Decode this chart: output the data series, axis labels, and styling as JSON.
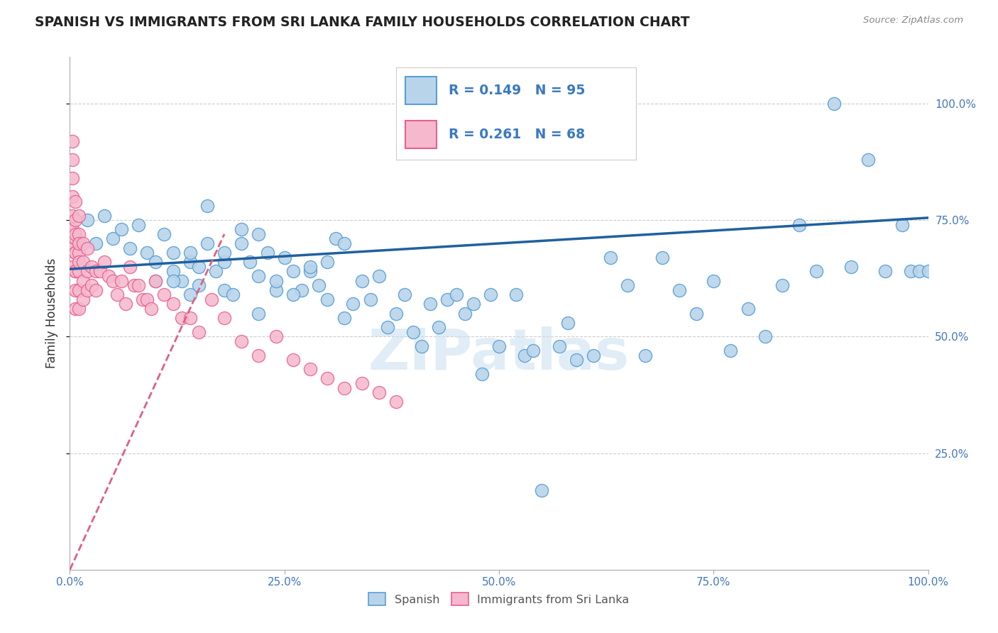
{
  "title": "SPANISH VS IMMIGRANTS FROM SRI LANKA FAMILY HOUSEHOLDS CORRELATION CHART",
  "source_text": "Source: ZipAtlas.com",
  "ylabel": "Family Households",
  "blue_R": 0.149,
  "blue_N": 95,
  "pink_R": 0.261,
  "pink_N": 68,
  "blue_color": "#b8d4ea",
  "pink_color": "#f5b8cc",
  "blue_edge_color": "#5a9fd4",
  "pink_edge_color": "#e86090",
  "blue_line_color": "#2060a0",
  "pink_line_color": "#e06080",
  "watermark": "ZIPatlas",
  "blue_scatter_x": [
    0.02,
    0.03,
    0.04,
    0.05,
    0.06,
    0.07,
    0.08,
    0.09,
    0.1,
    0.11,
    0.12,
    0.12,
    0.13,
    0.14,
    0.14,
    0.15,
    0.15,
    0.16,
    0.17,
    0.18,
    0.18,
    0.19,
    0.2,
    0.21,
    0.22,
    0.22,
    0.23,
    0.24,
    0.25,
    0.26,
    0.27,
    0.28,
    0.29,
    0.3,
    0.31,
    0.32,
    0.33,
    0.34,
    0.35,
    0.36,
    0.37,
    0.38,
    0.39,
    0.4,
    0.41,
    0.42,
    0.43,
    0.44,
    0.45,
    0.46,
    0.47,
    0.48,
    0.49,
    0.5,
    0.52,
    0.53,
    0.54,
    0.55,
    0.57,
    0.58,
    0.59,
    0.61,
    0.63,
    0.65,
    0.67,
    0.69,
    0.71,
    0.73,
    0.75,
    0.77,
    0.79,
    0.81,
    0.83,
    0.85,
    0.87,
    0.89,
    0.91,
    0.93,
    0.95,
    0.97,
    0.98,
    0.99,
    1.0,
    0.1,
    0.12,
    0.14,
    0.16,
    0.18,
    0.2,
    0.22,
    0.24,
    0.26,
    0.28,
    0.3,
    0.32
  ],
  "blue_scatter_y": [
    0.75,
    0.7,
    0.76,
    0.71,
    0.73,
    0.69,
    0.74,
    0.68,
    0.66,
    0.72,
    0.64,
    0.68,
    0.62,
    0.66,
    0.59,
    0.65,
    0.61,
    0.78,
    0.64,
    0.66,
    0.6,
    0.59,
    0.73,
    0.66,
    0.63,
    0.55,
    0.68,
    0.6,
    0.67,
    0.64,
    0.6,
    0.64,
    0.61,
    0.58,
    0.71,
    0.54,
    0.57,
    0.62,
    0.58,
    0.63,
    0.52,
    0.55,
    0.59,
    0.51,
    0.48,
    0.57,
    0.52,
    0.58,
    0.59,
    0.55,
    0.57,
    0.42,
    0.59,
    0.48,
    0.59,
    0.46,
    0.47,
    0.17,
    0.48,
    0.53,
    0.45,
    0.46,
    0.67,
    0.61,
    0.46,
    0.67,
    0.6,
    0.55,
    0.62,
    0.47,
    0.56,
    0.5,
    0.61,
    0.74,
    0.64,
    1.0,
    0.65,
    0.88,
    0.64,
    0.74,
    0.64,
    0.64,
    0.64,
    0.62,
    0.62,
    0.68,
    0.7,
    0.68,
    0.7,
    0.72,
    0.62,
    0.59,
    0.65,
    0.66,
    0.7
  ],
  "pink_scatter_x": [
    0.003,
    0.003,
    0.003,
    0.003,
    0.003,
    0.003,
    0.003,
    0.003,
    0.006,
    0.006,
    0.006,
    0.006,
    0.006,
    0.006,
    0.006,
    0.006,
    0.006,
    0.006,
    0.01,
    0.01,
    0.01,
    0.01,
    0.01,
    0.01,
    0.01,
    0.01,
    0.015,
    0.015,
    0.015,
    0.015,
    0.02,
    0.02,
    0.02,
    0.025,
    0.025,
    0.03,
    0.03,
    0.035,
    0.04,
    0.045,
    0.05,
    0.055,
    0.06,
    0.065,
    0.07,
    0.075,
    0.08,
    0.085,
    0.09,
    0.095,
    0.1,
    0.11,
    0.12,
    0.13,
    0.14,
    0.15,
    0.165,
    0.18,
    0.2,
    0.22,
    0.24,
    0.26,
    0.28,
    0.3,
    0.32,
    0.34,
    0.36,
    0.38
  ],
  "pink_scatter_y": [
    0.92,
    0.88,
    0.84,
    0.8,
    0.76,
    0.73,
    0.69,
    0.65,
    0.79,
    0.75,
    0.71,
    0.68,
    0.64,
    0.6,
    0.56,
    0.72,
    0.68,
    0.64,
    0.76,
    0.72,
    0.68,
    0.64,
    0.6,
    0.56,
    0.7,
    0.66,
    0.7,
    0.66,
    0.62,
    0.58,
    0.69,
    0.64,
    0.6,
    0.65,
    0.61,
    0.64,
    0.6,
    0.64,
    0.66,
    0.63,
    0.62,
    0.59,
    0.62,
    0.57,
    0.65,
    0.61,
    0.61,
    0.58,
    0.58,
    0.56,
    0.62,
    0.59,
    0.57,
    0.54,
    0.54,
    0.51,
    0.58,
    0.54,
    0.49,
    0.46,
    0.5,
    0.45,
    0.43,
    0.41,
    0.39,
    0.4,
    0.38,
    0.36
  ]
}
